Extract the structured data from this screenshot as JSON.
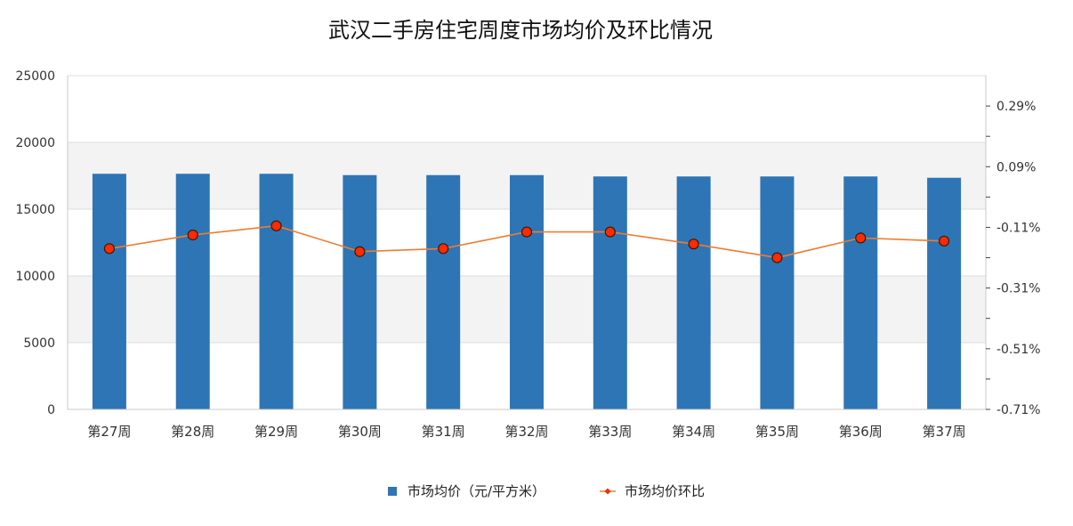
{
  "chart_data": {
    "type": "bar",
    "title": "武汉二手房住宅周度市场均价及环比情况",
    "categories": [
      "第27周",
      "第28周",
      "第29周",
      "第30周",
      "第31周",
      "第32周",
      "第33周",
      "第34周",
      "第35周",
      "第36周",
      "第37周"
    ],
    "series": [
      {
        "name": "市场均价（元/平方米）",
        "type": "bar",
        "axis": "left",
        "color": "#2e75b6",
        "values": [
          17650,
          17650,
          17650,
          17550,
          17550,
          17550,
          17450,
          17450,
          17450,
          17450,
          17350
        ]
      },
      {
        "name": "市场均价环比",
        "type": "line",
        "axis": "right",
        "color": "#ed7d31",
        "marker_color": "#ff2a00",
        "values": [
          -0.18,
          -0.135,
          -0.105,
          -0.19,
          -0.18,
          -0.125,
          -0.125,
          -0.165,
          -0.21,
          -0.145,
          -0.155
        ]
      }
    ],
    "y_left": {
      "min": 0,
      "max": 25000,
      "ticks": [
        0,
        5000,
        10000,
        15000,
        20000,
        25000
      ]
    },
    "y_right": {
      "min": -0.71,
      "max": 0.39,
      "ticks": [
        "0.29%",
        "0.09%",
        "-0.11%",
        "-0.31%",
        "-0.51%",
        "-0.71%"
      ],
      "tick_values": [
        0.29,
        0.09,
        -0.11,
        -0.31,
        -0.51,
        -0.71
      ]
    },
    "grid": true,
    "legend_position": "bottom"
  }
}
